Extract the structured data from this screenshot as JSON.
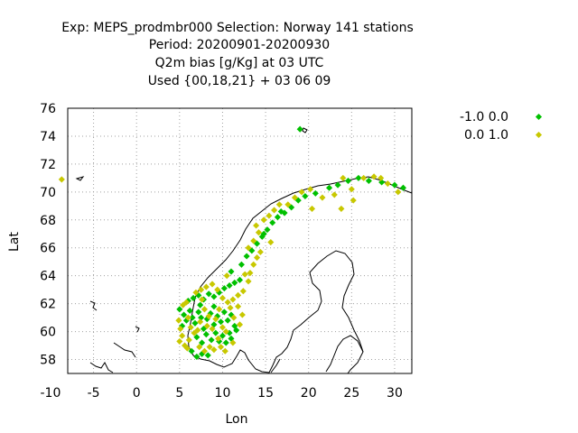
{
  "chart_data": {
    "type": "scatter",
    "title_lines": [
      "Exp: MEPS_prodmbr000   Selection: Norway    141 stations",
      "Period: 20200901-20200930",
      "Q2m bias [g/Kg] at  03 UTC",
      "Used {00,18,21} + 03 06 09"
    ],
    "xlabel": "Lon",
    "ylabel": "Lat",
    "xlim": [
      -8,
      32
    ],
    "ylim": [
      57,
      76
    ],
    "xticks": [
      "-10",
      "-5",
      "0",
      "5",
      "10",
      "15",
      "20",
      "25",
      "30"
    ],
    "yticks": [
      "58",
      "60",
      "62",
      "64",
      "66",
      "68",
      "70",
      "72",
      "74",
      "76"
    ],
    "xtick_values": [
      -10,
      -5,
      0,
      5,
      10,
      15,
      20,
      25,
      30
    ],
    "ytick_values": [
      58,
      60,
      62,
      64,
      66,
      68,
      70,
      72,
      74,
      76
    ],
    "grid": true,
    "legend_position": "right, outside plot",
    "series": [
      {
        "name": "-1.0 0.0",
        "color": "#00c000",
        "points": [
          [
            19.0,
            74.5
          ],
          [
            5.0,
            61.6
          ],
          [
            5.5,
            61.2
          ],
          [
            5.3,
            60.4
          ],
          [
            5.8,
            60.8
          ],
          [
            6.2,
            61.5
          ],
          [
            6.5,
            61.0
          ],
          [
            6.8,
            60.6
          ],
          [
            7.2,
            61.4
          ],
          [
            7.5,
            61.0
          ],
          [
            7.8,
            60.2
          ],
          [
            8.2,
            60.9
          ],
          [
            8.6,
            61.3
          ],
          [
            9.0,
            60.5
          ],
          [
            9.4,
            61.1
          ],
          [
            9.8,
            60.7
          ],
          [
            10.2,
            61.4
          ],
          [
            10.6,
            60.8
          ],
          [
            11.0,
            61.2
          ],
          [
            11.4,
            60.4
          ],
          [
            7.0,
            59.6
          ],
          [
            7.6,
            59.2
          ],
          [
            8.1,
            59.8
          ],
          [
            8.7,
            59.4
          ],
          [
            9.2,
            59.9
          ],
          [
            9.6,
            59.3
          ],
          [
            10.0,
            59.7
          ],
          [
            10.4,
            59.2
          ],
          [
            10.8,
            59.9
          ],
          [
            11.0,
            59.5
          ],
          [
            6.4,
            58.6
          ],
          [
            7.0,
            58.2
          ],
          [
            7.6,
            58.4
          ],
          [
            8.3,
            58.3
          ],
          [
            6.0,
            62.2
          ],
          [
            6.6,
            62.4
          ],
          [
            7.2,
            62.6
          ],
          [
            7.8,
            62.3
          ],
          [
            8.4,
            62.7
          ],
          [
            9.0,
            62.5
          ],
          [
            9.6,
            62.8
          ],
          [
            10.2,
            63.1
          ],
          [
            10.8,
            63.3
          ],
          [
            11.4,
            63.5
          ],
          [
            12.0,
            63.7
          ],
          [
            11.0,
            64.3
          ],
          [
            12.2,
            64.8
          ],
          [
            12.8,
            65.4
          ],
          [
            13.4,
            65.8
          ],
          [
            14.0,
            66.3
          ],
          [
            14.6,
            66.8
          ],
          [
            15.2,
            67.3
          ],
          [
            15.8,
            67.8
          ],
          [
            16.4,
            68.2
          ],
          [
            17.2,
            68.5
          ],
          [
            18.0,
            68.9
          ],
          [
            18.8,
            69.4
          ],
          [
            19.6,
            69.7
          ],
          [
            20.8,
            69.9
          ],
          [
            22.4,
            70.3
          ],
          [
            23.4,
            70.5
          ],
          [
            24.6,
            70.8
          ],
          [
            25.8,
            71.0
          ],
          [
            27.0,
            70.8
          ],
          [
            28.5,
            70.7
          ],
          [
            30.0,
            70.5
          ],
          [
            31.0,
            70.3
          ],
          [
            14.8,
            67.0
          ],
          [
            16.8,
            68.6
          ],
          [
            9.0,
            61.8
          ],
          [
            7.4,
            61.9
          ],
          [
            11.6,
            60.1
          ]
        ]
      },
      {
        "name": "0.0 1.0",
        "color": "#c8c800",
        "points": [
          [
            -8.7,
            70.9
          ],
          [
            4.9,
            60.8
          ],
          [
            5.1,
            60.2
          ],
          [
            5.3,
            59.7
          ],
          [
            5.0,
            59.3
          ],
          [
            5.6,
            59.0
          ],
          [
            5.9,
            58.8
          ],
          [
            5.4,
            61.9
          ],
          [
            5.8,
            62.1
          ],
          [
            6.0,
            61.0
          ],
          [
            6.3,
            60.3
          ],
          [
            6.7,
            59.9
          ],
          [
            7.1,
            60.1
          ],
          [
            7.4,
            60.7
          ],
          [
            7.9,
            61.6
          ],
          [
            8.4,
            61.1
          ],
          [
            8.8,
            60.2
          ],
          [
            9.2,
            60.9
          ],
          [
            9.6,
            61.6
          ],
          [
            10.0,
            60.3
          ],
          [
            10.4,
            60.0
          ],
          [
            10.9,
            61.7
          ],
          [
            11.3,
            61.0
          ],
          [
            11.8,
            61.8
          ],
          [
            12.0,
            60.5
          ],
          [
            7.3,
            58.9
          ],
          [
            7.9,
            58.6
          ],
          [
            8.5,
            58.9
          ],
          [
            9.0,
            58.7
          ],
          [
            9.8,
            58.9
          ],
          [
            10.3,
            58.6
          ],
          [
            11.2,
            59.2
          ],
          [
            6.9,
            62.8
          ],
          [
            7.5,
            63.0
          ],
          [
            8.1,
            63.2
          ],
          [
            8.8,
            63.4
          ],
          [
            9.4,
            63.0
          ],
          [
            10.0,
            62.4
          ],
          [
            10.6,
            62.1
          ],
          [
            11.2,
            62.3
          ],
          [
            11.8,
            62.6
          ],
          [
            12.4,
            62.9
          ],
          [
            13.0,
            63.6
          ],
          [
            13.2,
            64.2
          ],
          [
            13.6,
            64.8
          ],
          [
            14.0,
            65.3
          ],
          [
            13.0,
            66.0
          ],
          [
            13.6,
            66.5
          ],
          [
            14.2,
            67.1
          ],
          [
            13.9,
            67.6
          ],
          [
            14.8,
            68.0
          ],
          [
            15.4,
            68.3
          ],
          [
            16.0,
            68.7
          ],
          [
            16.6,
            69.1
          ],
          [
            17.6,
            69.1
          ],
          [
            18.4,
            69.6
          ],
          [
            19.2,
            70.0
          ],
          [
            20.2,
            70.2
          ],
          [
            21.6,
            69.6
          ],
          [
            23.0,
            69.8
          ],
          [
            24.0,
            71.0
          ],
          [
            25.0,
            70.2
          ],
          [
            26.4,
            71.0
          ],
          [
            27.6,
            71.1
          ],
          [
            28.4,
            71.0
          ],
          [
            29.2,
            70.6
          ],
          [
            30.4,
            70.0
          ],
          [
            20.4,
            68.8
          ],
          [
            23.8,
            68.8
          ],
          [
            25.2,
            69.4
          ],
          [
            14.4,
            65.7
          ],
          [
            15.6,
            66.4
          ],
          [
            12.6,
            64.1
          ],
          [
            10.5,
            64.0
          ],
          [
            7.6,
            62.3
          ],
          [
            8.2,
            60.4
          ],
          [
            6.1,
            59.4
          ],
          [
            9.5,
            59.5
          ],
          [
            12.3,
            61.2
          ]
        ]
      }
    ]
  }
}
